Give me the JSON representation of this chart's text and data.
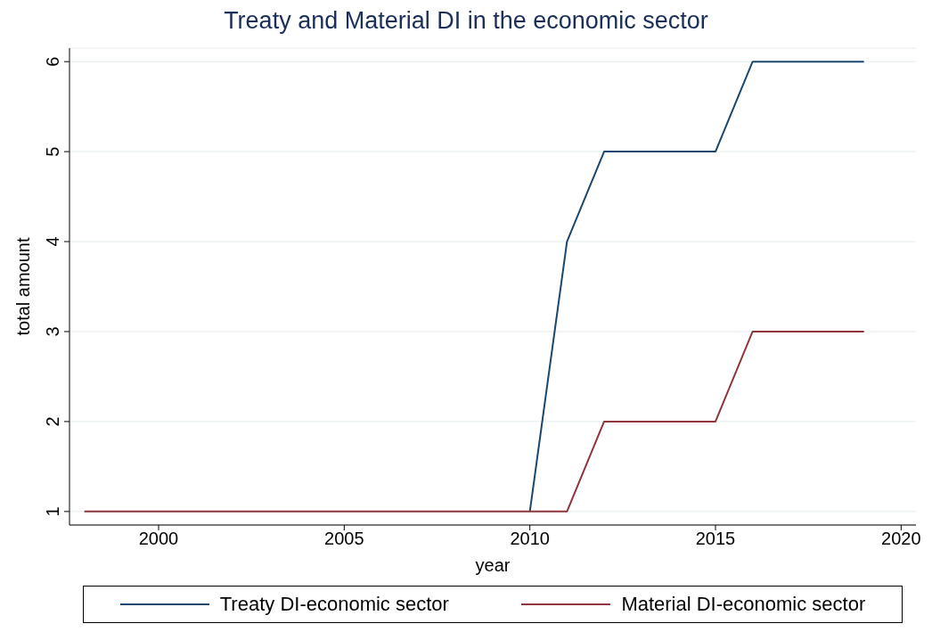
{
  "chart_data": {
    "type": "line",
    "title": "Treaty and Material DI in the economic sector",
    "xlabel": "year",
    "ylabel": "total amount",
    "x": [
      1998,
      1999,
      2000,
      2001,
      2002,
      2003,
      2004,
      2005,
      2006,
      2007,
      2008,
      2009,
      2010,
      2011,
      2012,
      2013,
      2014,
      2015,
      2016,
      2017,
      2018,
      2019
    ],
    "series": [
      {
        "name": "Treaty DI-economic sector",
        "color": "#1a476f",
        "values": [
          null,
          null,
          null,
          null,
          null,
          null,
          null,
          null,
          null,
          null,
          null,
          null,
          1,
          4,
          5,
          5,
          5,
          5,
          6,
          6,
          6,
          6
        ]
      },
      {
        "name": "Material DI-economic sector",
        "color": "#90353b",
        "values": [
          1,
          1,
          1,
          1,
          1,
          1,
          1,
          1,
          1,
          1,
          1,
          1,
          1,
          1,
          2,
          2,
          2,
          2,
          3,
          3,
          3,
          3
        ]
      }
    ],
    "xlim": [
      1997.6,
      2020.4
    ],
    "xticks": [
      2000,
      2005,
      2010,
      2015,
      2020
    ],
    "ylim": [
      0.85,
      6.15
    ],
    "yticks": [
      1,
      2,
      3,
      4,
      5,
      6
    ],
    "grid": "y",
    "legend": "bottom",
    "marker": "none",
    "line_style": "solid"
  }
}
